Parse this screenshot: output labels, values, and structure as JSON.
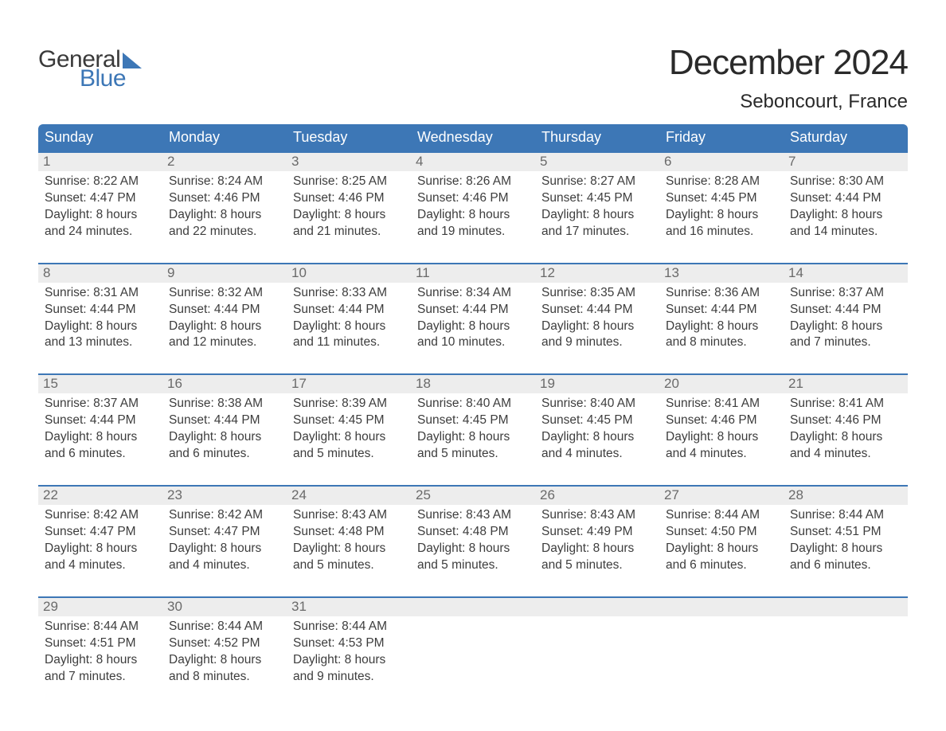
{
  "brand": {
    "word1": "General",
    "word2": "Blue",
    "color": "#3d77b6"
  },
  "title": "December 2024",
  "location": "Seboncourt, France",
  "styling": {
    "page_bg": "#ffffff",
    "header_bg": "#3d77b6",
    "header_text": "#ffffff",
    "daynum_bg": "#ededed",
    "daynum_border": "#3d77b6",
    "daynum_color": "#6a6a6a",
    "body_text": "#3d3d3d",
    "title_fontsize": 44,
    "location_fontsize": 24,
    "weekday_fontsize": 18,
    "detail_fontsize": 15.5,
    "columns": 7
  },
  "weekdays": [
    "Sunday",
    "Monday",
    "Tuesday",
    "Wednesday",
    "Thursday",
    "Friday",
    "Saturday"
  ],
  "weeks": [
    [
      {
        "n": "1",
        "sr": "8:22 AM",
        "ss": "4:47 PM",
        "dl": "8 hours and 24 minutes."
      },
      {
        "n": "2",
        "sr": "8:24 AM",
        "ss": "4:46 PM",
        "dl": "8 hours and 22 minutes."
      },
      {
        "n": "3",
        "sr": "8:25 AM",
        "ss": "4:46 PM",
        "dl": "8 hours and 21 minutes."
      },
      {
        "n": "4",
        "sr": "8:26 AM",
        "ss": "4:46 PM",
        "dl": "8 hours and 19 minutes."
      },
      {
        "n": "5",
        "sr": "8:27 AM",
        "ss": "4:45 PM",
        "dl": "8 hours and 17 minutes."
      },
      {
        "n": "6",
        "sr": "8:28 AM",
        "ss": "4:45 PM",
        "dl": "8 hours and 16 minutes."
      },
      {
        "n": "7",
        "sr": "8:30 AM",
        "ss": "4:44 PM",
        "dl": "8 hours and 14 minutes."
      }
    ],
    [
      {
        "n": "8",
        "sr": "8:31 AM",
        "ss": "4:44 PM",
        "dl": "8 hours and 13 minutes."
      },
      {
        "n": "9",
        "sr": "8:32 AM",
        "ss": "4:44 PM",
        "dl": "8 hours and 12 minutes."
      },
      {
        "n": "10",
        "sr": "8:33 AM",
        "ss": "4:44 PM",
        "dl": "8 hours and 11 minutes."
      },
      {
        "n": "11",
        "sr": "8:34 AM",
        "ss": "4:44 PM",
        "dl": "8 hours and 10 minutes."
      },
      {
        "n": "12",
        "sr": "8:35 AM",
        "ss": "4:44 PM",
        "dl": "8 hours and 9 minutes."
      },
      {
        "n": "13",
        "sr": "8:36 AM",
        "ss": "4:44 PM",
        "dl": "8 hours and 8 minutes."
      },
      {
        "n": "14",
        "sr": "8:37 AM",
        "ss": "4:44 PM",
        "dl": "8 hours and 7 minutes."
      }
    ],
    [
      {
        "n": "15",
        "sr": "8:37 AM",
        "ss": "4:44 PM",
        "dl": "8 hours and 6 minutes."
      },
      {
        "n": "16",
        "sr": "8:38 AM",
        "ss": "4:44 PM",
        "dl": "8 hours and 6 minutes."
      },
      {
        "n": "17",
        "sr": "8:39 AM",
        "ss": "4:45 PM",
        "dl": "8 hours and 5 minutes."
      },
      {
        "n": "18",
        "sr": "8:40 AM",
        "ss": "4:45 PM",
        "dl": "8 hours and 5 minutes."
      },
      {
        "n": "19",
        "sr": "8:40 AM",
        "ss": "4:45 PM",
        "dl": "8 hours and 4 minutes."
      },
      {
        "n": "20",
        "sr": "8:41 AM",
        "ss": "4:46 PM",
        "dl": "8 hours and 4 minutes."
      },
      {
        "n": "21",
        "sr": "8:41 AM",
        "ss": "4:46 PM",
        "dl": "8 hours and 4 minutes."
      }
    ],
    [
      {
        "n": "22",
        "sr": "8:42 AM",
        "ss": "4:47 PM",
        "dl": "8 hours and 4 minutes."
      },
      {
        "n": "23",
        "sr": "8:42 AM",
        "ss": "4:47 PM",
        "dl": "8 hours and 4 minutes."
      },
      {
        "n": "24",
        "sr": "8:43 AM",
        "ss": "4:48 PM",
        "dl": "8 hours and 5 minutes."
      },
      {
        "n": "25",
        "sr": "8:43 AM",
        "ss": "4:48 PM",
        "dl": "8 hours and 5 minutes."
      },
      {
        "n": "26",
        "sr": "8:43 AM",
        "ss": "4:49 PM",
        "dl": "8 hours and 5 minutes."
      },
      {
        "n": "27",
        "sr": "8:44 AM",
        "ss": "4:50 PM",
        "dl": "8 hours and 6 minutes."
      },
      {
        "n": "28",
        "sr": "8:44 AM",
        "ss": "4:51 PM",
        "dl": "8 hours and 6 minutes."
      }
    ],
    [
      {
        "n": "29",
        "sr": "8:44 AM",
        "ss": "4:51 PM",
        "dl": "8 hours and 7 minutes."
      },
      {
        "n": "30",
        "sr": "8:44 AM",
        "ss": "4:52 PM",
        "dl": "8 hours and 8 minutes."
      },
      {
        "n": "31",
        "sr": "8:44 AM",
        "ss": "4:53 PM",
        "dl": "8 hours and 9 minutes."
      },
      null,
      null,
      null,
      null
    ]
  ],
  "labels": {
    "sunrise_prefix": "Sunrise: ",
    "sunset_prefix": "Sunset: ",
    "daylight_prefix": "Daylight: "
  }
}
